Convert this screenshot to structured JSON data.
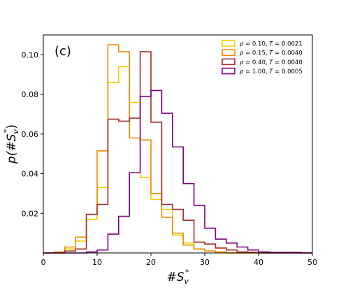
{
  "chart_data": {
    "type": "histogram-step",
    "panel_label": "(c)",
    "xlabel_base": "#S",
    "xlabel_sub": "v",
    "xlabel_sup": "*",
    "ylabel_base": "p(#S",
    "ylabel_sub": "v",
    "ylabel_sup": "*",
    "ylabel_close": ")",
    "xlim": [
      0,
      50
    ],
    "ylim": [
      0,
      0.11
    ],
    "xticks": [
      0,
      10,
      20,
      30,
      40,
      50
    ],
    "yticks": [
      0.02,
      0.04,
      0.06,
      0.08,
      0.1
    ],
    "ytick_labels": [
      "0.02",
      "0.04",
      "0.06",
      "0.08",
      "0.10"
    ],
    "legend_position": "upper-right",
    "bin_edges": [
      0,
      2,
      4,
      6,
      8,
      10,
      12,
      14,
      16,
      18,
      20,
      22,
      24,
      26,
      28,
      30,
      32,
      34,
      36,
      38,
      40,
      42,
      44,
      46,
      48,
      50
    ],
    "series": [
      {
        "rho": "0.10",
        "T": "0.0021",
        "color": "#f5d000",
        "values": [
          0,
          0.0003,
          0.002,
          0.006,
          0.017,
          0.033,
          0.086,
          0.094,
          0.076,
          0.038,
          0.027,
          0.022,
          0.009,
          0.005,
          0.002,
          0.001,
          0.0005,
          0,
          0,
          0,
          0,
          0,
          0,
          0,
          0
        ]
      },
      {
        "rho": "0.15",
        "T": "0.0040",
        "color": "#f08a00",
        "values": [
          0,
          0.0005,
          0.003,
          0.008,
          0.0195,
          0.0515,
          0.105,
          0.1015,
          0.058,
          0.057,
          0.03,
          0.018,
          0.01,
          0.004,
          0.002,
          0.001,
          0.0005,
          0,
          0,
          0,
          0,
          0,
          0,
          0,
          0
        ]
      },
      {
        "rho": "0.40",
        "T": "0.0040",
        "color": "#a52a2a",
        "values": [
          0,
          0,
          0.001,
          0.002,
          0.0195,
          0.0245,
          0.0675,
          0.0665,
          0.068,
          0.1015,
          0.066,
          0.0245,
          0.022,
          0.0165,
          0.0055,
          0.0045,
          0.0025,
          0.0015,
          0.0005,
          0.0003,
          0,
          0,
          0,
          0,
          0
        ]
      },
      {
        "rho": "1.00",
        "T": "0.0005",
        "color": "#800080",
        "values": [
          0,
          0,
          0,
          0,
          0.0005,
          0.0015,
          0.0095,
          0.0185,
          0.0405,
          0.079,
          0.082,
          0.0705,
          0.0535,
          0.035,
          0.024,
          0.0125,
          0.007,
          0.005,
          0.003,
          0.0015,
          0.0005,
          0.0003,
          0.0003,
          0.0003,
          0
        ]
      }
    ]
  }
}
